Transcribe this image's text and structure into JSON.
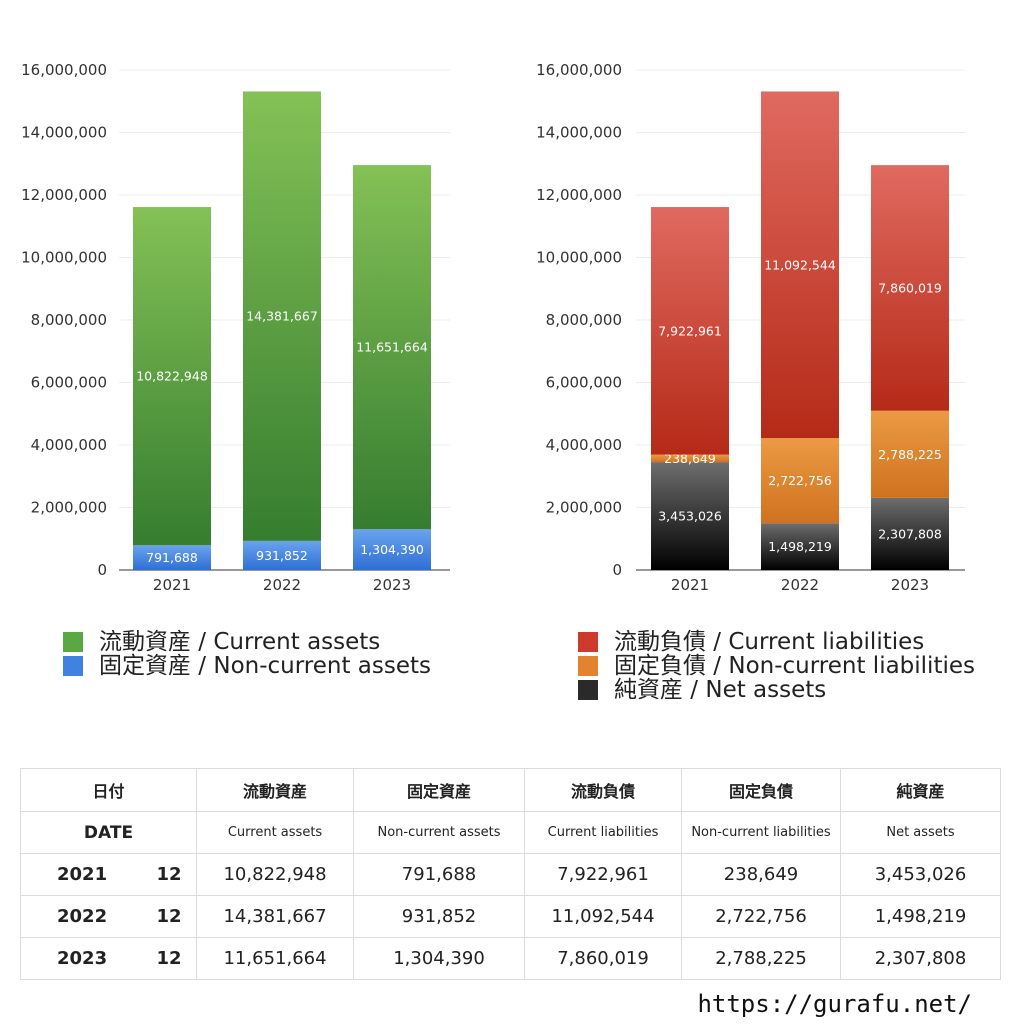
{
  "chart_data": [
    {
      "type": "bar",
      "stacked": true,
      "categories": [
        "2021",
        "2022",
        "2023"
      ],
      "ylim": [
        0,
        16000000
      ],
      "yticks": [
        "0",
        "2,000,000",
        "4,000,000",
        "6,000,000",
        "8,000,000",
        "10,000,000",
        "12,000,000",
        "14,000,000",
        "16,000,000"
      ],
      "grid": true,
      "legend_position": "bottom",
      "series": [
        {
          "name": "固定資産 / Non-current assets",
          "values": [
            791688,
            931852,
            1304390
          ],
          "labels": [
            "791,688",
            "931,852",
            "1,304,390"
          ],
          "color_top": "#6aa3ee",
          "color_bottom": "#2e6fd4"
        },
        {
          "name": "流動資産 / Current assets",
          "values": [
            10822948,
            14381667,
            11651664
          ],
          "labels": [
            "10,822,948",
            "14,381,667",
            "11,651,664"
          ],
          "color_top": "#84c156",
          "color_bottom": "#357d2f"
        }
      ],
      "legend": [
        {
          "name": "流動資産 / Current assets",
          "color": "#5aa844"
        },
        {
          "name": "固定資産 / Non-current assets",
          "color": "#3f82e0"
        }
      ]
    },
    {
      "type": "bar",
      "stacked": true,
      "categories": [
        "2021",
        "2022",
        "2023"
      ],
      "ylim": [
        0,
        16000000
      ],
      "yticks": [
        "0",
        "2,000,000",
        "4,000,000",
        "6,000,000",
        "8,000,000",
        "10,000,000",
        "12,000,000",
        "14,000,000",
        "16,000,000"
      ],
      "grid": true,
      "legend_position": "bottom",
      "series": [
        {
          "name": "純資産 / Net assets",
          "values": [
            3453026,
            1498219,
            2307808
          ],
          "labels": [
            "3,453,026",
            "1,498,219",
            "2,307,808"
          ],
          "color_top": "#6e6e6e",
          "color_bottom": "#000000"
        },
        {
          "name": "固定負債 / Non-current liabilities",
          "values": [
            238649,
            2722756,
            2788225
          ],
          "labels": [
            "238,649",
            "2,722,756",
            "2,788,225"
          ],
          "color_top": "#eb9a43",
          "color_bottom": "#d0721f"
        },
        {
          "name": "流動負債 / Current liabilities",
          "values": [
            7922961,
            11092544,
            7860019
          ],
          "labels": [
            "7,922,961",
            "11,092,544",
            "7,860,019"
          ],
          "color_top": "#e06a60",
          "color_bottom": "#b52a17"
        }
      ],
      "legend": [
        {
          "name": "流動負債 / Current liabilities",
          "color": "#cc3b2c"
        },
        {
          "name": "固定負債 / Non-current liabilities",
          "color": "#e2832f"
        },
        {
          "name": "純資産 / Net assets",
          "color": "#2a2a2a"
        }
      ]
    }
  ],
  "table": {
    "header_date_jp": "日付",
    "header_date_en": "DATE",
    "headers_jp": [
      "流動資産",
      "固定資産",
      "流動負債",
      "固定負債",
      "純資産"
    ],
    "headers_en": [
      "Current assets",
      "Non-current assets",
      "Current liabilities",
      "Non-current liabilities",
      "Net assets"
    ],
    "rows": [
      {
        "year": "2021",
        "month": "12",
        "values": [
          "10,822,948",
          "791,688",
          "7,922,961",
          "238,649",
          "3,453,026"
        ]
      },
      {
        "year": "2022",
        "month": "12",
        "values": [
          "14,381,667",
          "931,852",
          "11,092,544",
          "2,722,756",
          "1,498,219"
        ]
      },
      {
        "year": "2023",
        "month": "12",
        "values": [
          "11,651,664",
          "1,304,390",
          "7,860,019",
          "2,788,225",
          "2,307,808"
        ]
      }
    ]
  },
  "footer": {
    "url": "https://gurafu.net/"
  }
}
